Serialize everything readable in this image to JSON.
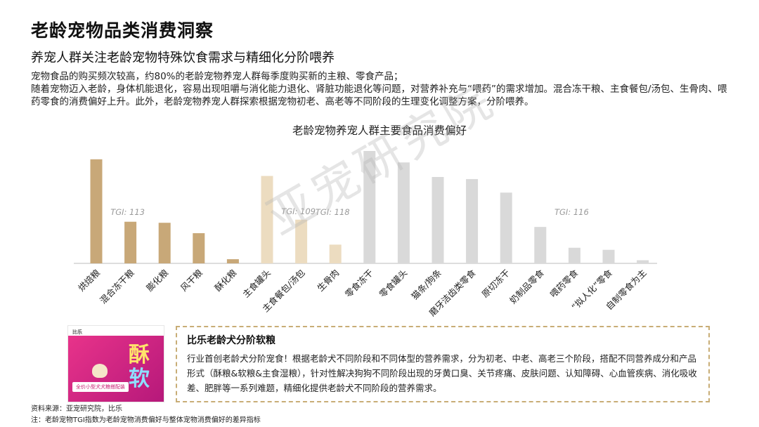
{
  "header": {
    "title": "老龄宠物品类消费洞察",
    "subtitle": "养宠人群关注老龄宠物特殊饮食需求与精细化分阶喂养"
  },
  "description": {
    "line1": "宠物食品的购买频次较高，约80%的老龄宠物养宠人群每季度购买新的主粮、零食产品；",
    "line2": "随着宠物迈入老龄，身体机能退化，容易出现咀嚼与消化能力退化、肾脏功能退化等问题，对营养补充与“喂药”的需求增加。混合冻干粮、主食餐包/汤包、生骨肉、喂药零食的消费偏好上升。此外，老龄宠物养宠人群探索根据宠物初老、高老等不同阶段的生理变化调整方案，分阶喂养。"
  },
  "chart_data": {
    "type": "bar",
    "title": "老龄宠物养宠人群主要食品消费偏好",
    "categories": [
      "烘焙粮",
      "混合冻干粮",
      "膨化粮",
      "风干粮",
      "酥化粮",
      "主食罐头",
      "主食餐包/汤包",
      "生骨肉",
      "零食冻干",
      "零食罐头",
      "猫条/狗条",
      "磨牙洁齿类零食",
      "原切冻干",
      "奶制品零食",
      "喂药零食",
      "“拟人化”零食",
      "自制零食为主"
    ],
    "values": [
      100,
      40,
      39,
      29,
      4,
      84,
      42,
      18,
      108,
      97,
      83,
      81,
      68,
      35,
      15,
      13,
      3
    ],
    "ylim": [
      0,
      110
    ],
    "colors": [
      "#c8a878",
      "#c8a878",
      "#c8a878",
      "#c8a878",
      "#c8a878",
      "#ecdcc0",
      "#ecdcc0",
      "#ecdcc0",
      "#d9d9d9",
      "#d9d9d9",
      "#d9d9d9",
      "#d9d9d9",
      "#d9d9d9",
      "#d9d9d9",
      "#d9d9d9",
      "#d9d9d9",
      "#d9d9d9"
    ],
    "annotations": [
      {
        "category_index": 1,
        "text": "TGI: 113"
      },
      {
        "category_index": 6,
        "text": "TGI: 109"
      },
      {
        "category_index": 7,
        "text": "TGI: 118"
      },
      {
        "category_index": 14,
        "text": "TGI: 116"
      }
    ],
    "grid": false,
    "legend": "none"
  },
  "watermark": "亚宠研究院",
  "product": {
    "brand": "比乐",
    "char1": "酥",
    "char2": "软",
    "strip": "全价小型犬犬粮搭配装"
  },
  "callout": {
    "title": "比乐老龄犬分阶软粮",
    "text": "行业首创老龄犬分阶宠食！根据老龄犬不同阶段和不同体型的营养需求，分为初老、中老、高老三个阶段，搭配不同营养成分和产品形式（酥粮&软粮&主食湿粮），针对性解决狗狗不同阶段出现的牙黄口臭、关节疼痛、皮肤问题、认知障碍、心血管疾病、消化吸收差、肥胖等一系列难题，精细化提供老龄犬不同阶段的营养需求。"
  },
  "footnotes": {
    "source": "资料来源：亚宠研究院，比乐",
    "note": "注：老龄宠物TGI指数为老龄宠物消费偏好与整体宠物消费偏好的差异指标"
  }
}
